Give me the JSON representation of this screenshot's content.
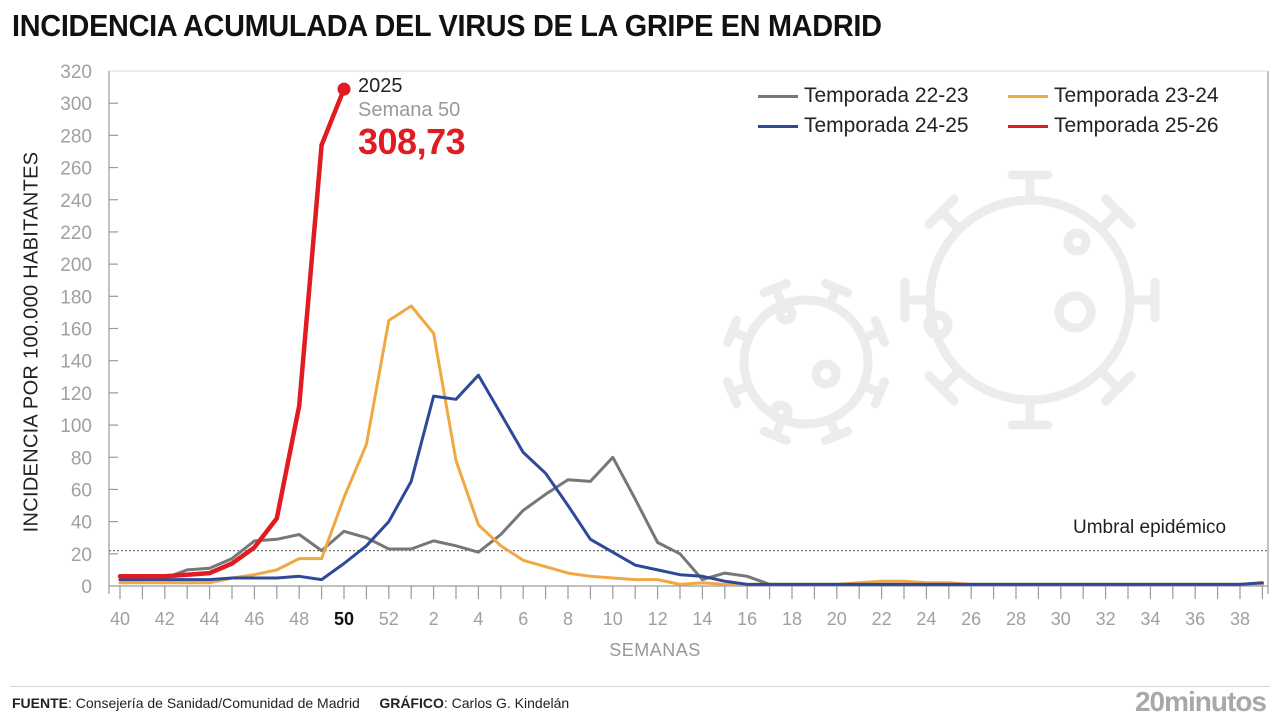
{
  "title": "INCIDENCIA ACUMULADA DEL VIRUS DE LA GRIPE EN MADRID",
  "footer": {
    "source_label": "FUENTE",
    "source_text": ": Consejería de Sanidad/Comunidad de Madrid",
    "graphic_label": "GRÁFICO",
    "graphic_text": ": Carlos G. Kindelán",
    "brand": "20minutos"
  },
  "annotation": {
    "year": "2025",
    "week": "Semana 50",
    "value": "308,73"
  },
  "chart_data": {
    "type": "line",
    "title": "INCIDENCIA ACUMULADA DEL VIRUS DE LA GRIPE EN MADRID",
    "xlabel": "SEMANAS",
    "ylabel": "INCIDENCIA POR 100.000 HABITANTES",
    "ylim": [
      0,
      320
    ],
    "yticks": [
      0,
      20,
      40,
      60,
      80,
      100,
      120,
      140,
      160,
      180,
      200,
      220,
      240,
      260,
      280,
      300,
      320
    ],
    "x": [
      40,
      41,
      42,
      43,
      44,
      45,
      46,
      47,
      48,
      49,
      50,
      51,
      52,
      1,
      2,
      3,
      4,
      5,
      6,
      7,
      8,
      9,
      10,
      11,
      12,
      13,
      14,
      15,
      16,
      17,
      18,
      19,
      20,
      21,
      22,
      23,
      24,
      25,
      26,
      27,
      28,
      29,
      30,
      31,
      32,
      33,
      34,
      35,
      36,
      37,
      38,
      39
    ],
    "xtick_labels": [
      "40",
      "42",
      "44",
      "46",
      "48",
      "50",
      "52",
      "2",
      "4",
      "6",
      "8",
      "10",
      "12",
      "14",
      "16",
      "18",
      "20",
      "22",
      "24",
      "26",
      "28",
      "30",
      "32",
      "34",
      "36",
      "38"
    ],
    "highlighted_xtick": "50",
    "threshold": {
      "label": "Umbral epidémico",
      "value": 22
    },
    "legend_position": "top-right",
    "grid": false,
    "series": [
      {
        "name": "Temporada 22-23",
        "color": "#777777",
        "values": [
          4,
          4,
          5,
          10,
          11,
          17,
          28,
          29,
          32,
          22,
          34,
          30,
          23,
          23,
          28,
          25,
          21,
          32,
          47,
          57,
          66,
          65,
          80,
          54,
          27,
          20,
          4,
          8,
          6,
          1,
          1,
          1,
          1,
          1,
          1,
          1,
          1,
          1,
          1,
          1,
          1,
          1,
          1,
          1,
          1,
          1,
          1,
          1,
          1,
          1,
          1,
          1
        ]
      },
      {
        "name": "Temporada 23-24",
        "color": "#f0a843",
        "values": [
          2,
          2,
          2,
          2,
          2,
          5,
          7,
          10,
          17,
          17,
          55,
          88,
          165,
          174,
          157,
          78,
          38,
          25,
          16,
          12,
          8,
          6,
          5,
          4,
          4,
          1,
          2,
          1,
          1,
          1,
          1,
          1,
          1,
          2,
          3,
          3,
          2,
          2,
          1,
          1,
          1,
          1,
          1,
          1,
          1,
          1,
          1,
          1,
          1,
          1,
          1,
          1
        ]
      },
      {
        "name": "Temporada 24-25",
        "color": "#2d4a9a",
        "values": [
          4,
          4,
          4,
          4,
          4,
          5,
          5,
          5,
          6,
          4,
          14,
          25,
          40,
          65,
          118,
          116,
          131,
          107,
          83,
          70,
          50,
          29,
          21,
          13,
          10,
          7,
          6,
          3,
          1,
          1,
          1,
          1,
          1,
          1,
          1,
          1,
          1,
          1,
          1,
          1,
          1,
          1,
          1,
          1,
          1,
          1,
          1,
          1,
          1,
          1,
          1,
          2
        ]
      },
      {
        "name": "Temporada 25-26",
        "color": "#e01b22",
        "values": [
          6,
          6,
          6,
          7,
          8,
          14,
          24,
          42,
          112,
          274,
          308.73
        ]
      }
    ]
  }
}
